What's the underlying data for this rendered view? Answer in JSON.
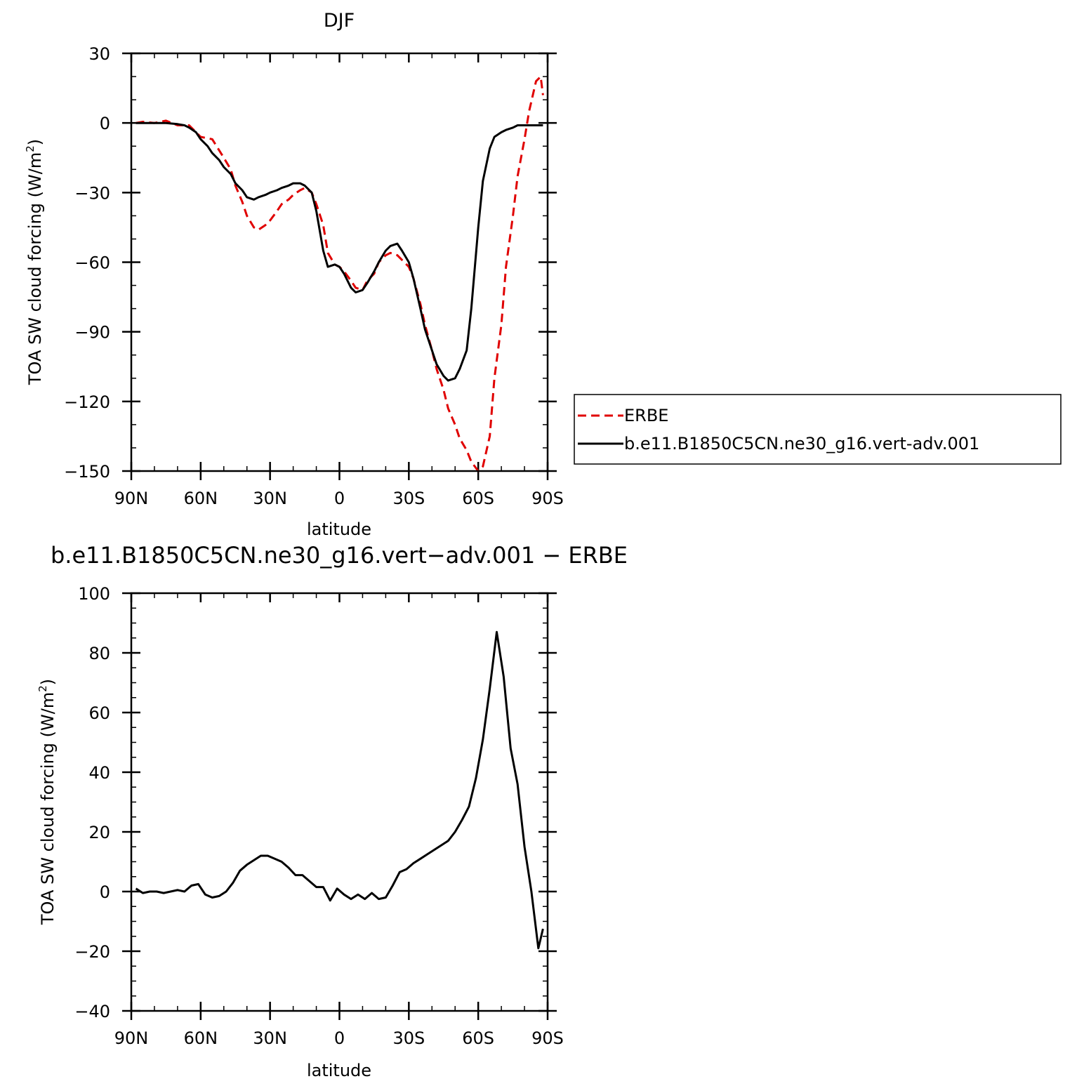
{
  "chart_data": [
    {
      "type": "line",
      "title": "DJF",
      "xlabel": "latitude",
      "ylabel_main": "TOA SW cloud forcing (W/m",
      "ylabel_sup": "2",
      "ylabel_close": ")",
      "xlim": [
        -90,
        90
      ],
      "ylim": [
        -150,
        30
      ],
      "xticks": [
        -90,
        -60,
        -30,
        0,
        30,
        60,
        90
      ],
      "xtick_labels": [
        "90N",
        "60N",
        "30N",
        "0",
        "30S",
        "60S",
        "90S"
      ],
      "yticks": [
        -150,
        -120,
        -90,
        -60,
        -30,
        0,
        30
      ],
      "ytick_labels": [
        "−150",
        "−120",
        "−90",
        "−60",
        "−30",
        "0",
        "30"
      ],
      "legend": [
        "ERBE",
        "b.e11.B1850C5CN.ne30_g16.vert-adv.001"
      ],
      "legend_placement": "right",
      "grid": false,
      "series": [
        {
          "name": "ERBE",
          "color": "#e00000",
          "dash": "dashed",
          "x": [
            -88,
            -85,
            -80,
            -75,
            -70,
            -65,
            -60,
            -55,
            -50,
            -47,
            -45,
            -42,
            -40,
            -37,
            -35,
            -32,
            -30,
            -27,
            -25,
            -22,
            -20,
            -17,
            -15,
            -12,
            -10,
            -7,
            -5,
            -2,
            0,
            2,
            5,
            7,
            10,
            12,
            15,
            17,
            20,
            22,
            25,
            27,
            30,
            32,
            35,
            37,
            40,
            42,
            45,
            47,
            50,
            52,
            55,
            57,
            60,
            62,
            65,
            67,
            70,
            72,
            75,
            77,
            80,
            82,
            85,
            87,
            88
          ],
          "y": [
            0,
            0.5,
            0,
            1,
            -1,
            -1,
            -6,
            -7,
            -15,
            -20,
            -27,
            -34,
            -40,
            -45,
            -46,
            -44,
            -42,
            -38,
            -35,
            -33,
            -31,
            -29,
            -28,
            -30,
            -35,
            -44,
            -56,
            -61,
            -62,
            -64,
            -68,
            -71,
            -72,
            -68,
            -65,
            -60,
            -57,
            -56,
            -57,
            -59,
            -62,
            -67,
            -78,
            -87,
            -98,
            -106,
            -115,
            -123,
            -130,
            -136,
            -141,
            -146,
            -150,
            -148,
            -135,
            -110,
            -87,
            -62,
            -40,
            -23,
            -7,
            5,
            18,
            20,
            12
          ]
        },
        {
          "name": "b.e11.B1850C5CN.ne30_g16.vert-adv.001",
          "color": "#000000",
          "dash": "solid",
          "x": [
            -88,
            -85,
            -80,
            -75,
            -70,
            -67,
            -65,
            -62,
            -60,
            -57,
            -55,
            -52,
            -50,
            -47,
            -45,
            -42,
            -40,
            -37,
            -35,
            -32,
            -30,
            -27,
            -25,
            -22,
            -20,
            -17,
            -15,
            -12,
            -10,
            -7,
            -5,
            -2,
            0,
            2,
            5,
            7,
            10,
            12,
            15,
            17,
            20,
            22,
            25,
            27,
            30,
            32,
            35,
            37,
            40,
            42,
            45,
            47,
            50,
            52,
            55,
            57,
            60,
            62,
            65,
            67,
            70,
            72,
            75,
            77,
            80,
            82,
            85,
            87,
            88
          ],
          "y": [
            0,
            0,
            0,
            0,
            -0.5,
            -1,
            -2,
            -4,
            -7,
            -10,
            -13,
            -16,
            -19,
            -22,
            -26,
            -29,
            -32,
            -33,
            -32,
            -31,
            -30,
            -29,
            -28,
            -27,
            -26,
            -26,
            -27,
            -30,
            -38,
            -55,
            -62,
            -61,
            -62,
            -65,
            -71,
            -73,
            -72,
            -69,
            -64,
            -60,
            -55,
            -53,
            -52,
            -55,
            -60,
            -67,
            -80,
            -89,
            -98,
            -104,
            -109,
            -111,
            -110,
            -106,
            -98,
            -80,
            -45,
            -25,
            -11,
            -6,
            -4,
            -3,
            -2,
            -1,
            -1,
            -1,
            -1,
            -1,
            -1
          ]
        }
      ]
    },
    {
      "type": "line",
      "title": "b.e11.B1850C5CN.ne30_g16.vert−adv.001  −  ERBE",
      "xlabel": "latitude",
      "ylabel_main": "TOA SW cloud forcing (W/m",
      "ylabel_sup": "2",
      "ylabel_close": ")",
      "xlim": [
        -90,
        90
      ],
      "ylim": [
        -40,
        100
      ],
      "xticks": [
        -90,
        -60,
        -30,
        0,
        30,
        60,
        90
      ],
      "xtick_labels": [
        "90N",
        "60N",
        "30N",
        "0",
        "30S",
        "60S",
        "90S"
      ],
      "yticks": [
        -40,
        -20,
        0,
        20,
        40,
        60,
        80,
        100
      ],
      "ytick_labels": [
        "−40",
        "−20",
        "0",
        "20",
        "40",
        "60",
        "80",
        "100"
      ],
      "grid": false,
      "series": [
        {
          "color": "#000000",
          "dash": "solid",
          "x": [
            -88,
            -85,
            -82,
            -79,
            -76,
            -73,
            -70,
            -67,
            -64,
            -61,
            -58,
            -55,
            -52,
            -49,
            -46,
            -43,
            -40,
            -37,
            -34,
            -31,
            -28,
            -25,
            -22,
            -19,
            -16,
            -13,
            -10,
            -7,
            -4,
            -1,
            2,
            5,
            8,
            11,
            14,
            17,
            20,
            23,
            26,
            29,
            32,
            35,
            38,
            41,
            44,
            47,
            50,
            53,
            56,
            59,
            62,
            65,
            68,
            71,
            74,
            77,
            80,
            83,
            86,
            88
          ],
          "y": [
            1,
            -0.5,
            0,
            0,
            -0.5,
            0,
            0.5,
            0,
            2,
            2.5,
            -1,
            -2,
            -1.5,
            0,
            3,
            7,
            9,
            10.5,
            12,
            12,
            11,
            10,
            8,
            5.5,
            5.5,
            3.5,
            1.5,
            1.5,
            -3,
            1,
            -1,
            -2.5,
            -1,
            -2.5,
            -0.5,
            -2.5,
            -2,
            2,
            6.5,
            7.5,
            9.5,
            11,
            12.5,
            14,
            15.5,
            17,
            20,
            24,
            28.5,
            38,
            51,
            68,
            87,
            72,
            48,
            36,
            15,
            0,
            -19,
            -12.5
          ]
        }
      ]
    }
  ]
}
